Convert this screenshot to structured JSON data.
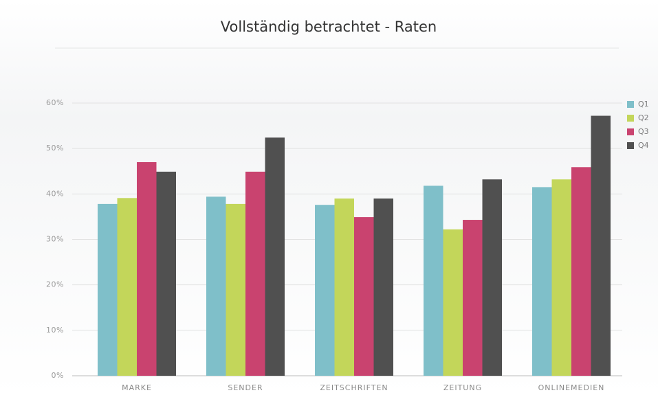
{
  "chart_data": {
    "type": "bar",
    "title": "Vollständig betrachtet - Raten",
    "categories": [
      "MARKE",
      "SENDER",
      "ZEITSCHRIFTEN",
      "ZEITUNG",
      "ONLINEMEDIEN"
    ],
    "series": [
      {
        "name": "Q1",
        "color": "#7fbfc9",
        "values": [
          37.8,
          39.4,
          37.6,
          41.8,
          41.5
        ]
      },
      {
        "name": "Q2",
        "color": "#c3d65a",
        "values": [
          39.1,
          37.8,
          39,
          32.2,
          43.2
        ]
      },
      {
        "name": "Q3",
        "color": "#c9436f",
        "values": [
          47,
          44.9,
          34.9,
          34.3,
          45.9
        ]
      },
      {
        "name": "Q4",
        "color": "#505050",
        "values": [
          44.9,
          52.4,
          39,
          43.2,
          57.2
        ]
      }
    ],
    "ylim": [
      0,
      60
    ],
    "yticks": [
      {
        "value": 0,
        "label": "0%"
      },
      {
        "value": 10,
        "label": "10%"
      },
      {
        "value": 20,
        "label": "20%"
      },
      {
        "value": 30,
        "label": "30%"
      },
      {
        "value": 40,
        "label": "40%"
      },
      {
        "value": 50,
        "label": "50%"
      },
      {
        "value": 60,
        "label": "60%"
      }
    ],
    "grid": true,
    "legend": "right"
  }
}
